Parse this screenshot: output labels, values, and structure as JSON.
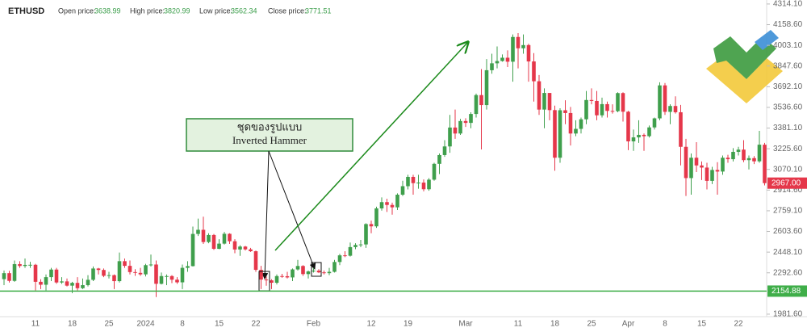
{
  "chart_data": {
    "type": "candlestick",
    "title": "ETHUSD",
    "info": [
      {
        "label": "Open price:",
        "value": "3638.99"
      },
      {
        "label": "High price:",
        "value": "3820.99"
      },
      {
        "label": "Low price:",
        "value": "3562.34"
      },
      {
        "label": "Close price:",
        "value": "3771.51"
      }
    ],
    "annotation": [
      "ชุดของรูปแบบ",
      "Inverted Hammer"
    ],
    "up_color": "#3f9f4c",
    "down_color": "#e5374a",
    "ylim": [
      1963,
      4344
    ],
    "yticks": [
      {
        "value": 4314.1,
        "label": "4314.10"
      },
      {
        "value": 4158.6,
        "label": "4158.60"
      },
      {
        "value": 4003.1,
        "label": "4003.10"
      },
      {
        "value": 3847.6,
        "label": "3847.60"
      },
      {
        "value": 3692.1,
        "label": "3692.10"
      },
      {
        "value": 3536.6,
        "label": "3536.60"
      },
      {
        "value": 3381.1,
        "label": "3381.10"
      },
      {
        "value": 3225.6,
        "label": "3225.60"
      },
      {
        "value": 3070.1,
        "label": "3070.10"
      },
      {
        "value": 2914.6,
        "label": "2914.60"
      },
      {
        "value": 2759.1,
        "label": "2759.10"
      },
      {
        "value": 2603.6,
        "label": "2603.60"
      },
      {
        "value": 2448.1,
        "label": "2448.10"
      },
      {
        "value": 2292.6,
        "label": "2292.60"
      },
      {
        "value": 1981.6,
        "label": "1981.60"
      }
    ],
    "price_line": {
      "value": 2154.88,
      "label": "2154.88",
      "color": "#3fae49"
    },
    "last_price": {
      "value": 2967,
      "label": "2967.00",
      "color": "#e5374a"
    },
    "categories": [
      null,
      null,
      null,
      null,
      null,
      null,
      "11",
      null,
      null,
      null,
      null,
      null,
      null,
      "18",
      null,
      null,
      null,
      null,
      null,
      null,
      "25",
      null,
      null,
      null,
      null,
      null,
      null,
      "2024",
      null,
      null,
      null,
      null,
      null,
      null,
      "8",
      null,
      null,
      null,
      null,
      null,
      null,
      "15",
      null,
      null,
      null,
      null,
      null,
      null,
      "22",
      null,
      null,
      null,
      null,
      null,
      null,
      null,
      null,
      null,
      null,
      "Feb",
      null,
      null,
      null,
      null,
      null,
      null,
      null,
      null,
      null,
      null,
      "12",
      null,
      null,
      null,
      null,
      null,
      null,
      "19",
      null,
      null,
      null,
      null,
      null,
      null,
      null,
      null,
      null,
      null,
      "Mar",
      null,
      null,
      null,
      null,
      null,
      null,
      null,
      null,
      null,
      "11",
      null,
      null,
      null,
      null,
      null,
      null,
      "18",
      null,
      null,
      null,
      null,
      null,
      null,
      "25",
      null,
      null,
      null,
      null,
      null,
      null,
      "Apr",
      null,
      null,
      null,
      null,
      null,
      null,
      "8",
      null,
      null,
      null,
      null,
      null,
      null,
      "15",
      null,
      null,
      null,
      null,
      null,
      null,
      "22",
      null,
      null,
      null,
      null,
      null,
      null
    ],
    "ohlc": [
      [
        2245,
        2310,
        2200,
        2290
      ],
      [
        2290,
        2308,
        2220,
        2232
      ],
      [
        2232,
        2385,
        2225,
        2358
      ],
      [
        2358,
        2380,
        2330,
        2344
      ],
      [
        2344,
        2400,
        2330,
        2352
      ],
      [
        2352,
        2375,
        2330,
        2353
      ],
      [
        2353,
        2360,
        2160,
        2225
      ],
      [
        2225,
        2245,
        2170,
        2203
      ],
      [
        2203,
        2280,
        2160,
        2260
      ],
      [
        2260,
        2330,
        2230,
        2317
      ],
      [
        2317,
        2330,
        2210,
        2220
      ],
      [
        2220,
        2260,
        2210,
        2228
      ],
      [
        2228,
        2250,
        2190,
        2196
      ],
      [
        2196,
        2225,
        2140,
        2217
      ],
      [
        2217,
        2260,
        2160,
        2177
      ],
      [
        2177,
        2250,
        2170,
        2200
      ],
      [
        2200,
        2275,
        2190,
        2240
      ],
      [
        2240,
        2340,
        2230,
        2325
      ],
      [
        2325,
        2330,
        2280,
        2314
      ],
      [
        2314,
        2325,
        2260,
        2270
      ],
      [
        2270,
        2300,
        2250,
        2275
      ],
      [
        2275,
        2280,
        2170,
        2230
      ],
      [
        2230,
        2445,
        2220,
        2380
      ],
      [
        2380,
        2400,
        2330,
        2345
      ],
      [
        2345,
        2385,
        2280,
        2298
      ],
      [
        2298,
        2320,
        2270,
        2292
      ],
      [
        2292,
        2330,
        2270,
        2281
      ],
      [
        2281,
        2360,
        2265,
        2350
      ],
      [
        2350,
        2430,
        2340,
        2355
      ],
      [
        2355,
        2385,
        2110,
        2210
      ],
      [
        2210,
        2295,
        2205,
        2268
      ],
      [
        2268,
        2280,
        2200,
        2268
      ],
      [
        2268,
        2275,
        2215,
        2241
      ],
      [
        2241,
        2260,
        2210,
        2221
      ],
      [
        2221,
        2355,
        2170,
        2330
      ],
      [
        2330,
        2380,
        2300,
        2343
      ],
      [
        2343,
        2640,
        2340,
        2585
      ],
      [
        2585,
        2700,
        2570,
        2616
      ],
      [
        2616,
        2715,
        2510,
        2524
      ],
      [
        2524,
        2590,
        2515,
        2577
      ],
      [
        2577,
        2585,
        2465,
        2473
      ],
      [
        2473,
        2545,
        2470,
        2512
      ],
      [
        2512,
        2600,
        2505,
        2586
      ],
      [
        2586,
        2590,
        2510,
        2530
      ],
      [
        2530,
        2545,
        2440,
        2468
      ],
      [
        2468,
        2500,
        2420,
        2490
      ],
      [
        2490,
        2495,
        2460,
        2469
      ],
      [
        2469,
        2480,
        2450,
        2455
      ],
      [
        2455,
        2460,
        2300,
        2315
      ],
      [
        2315,
        2345,
        2170,
        2242
      ],
      [
        2242,
        2265,
        2195,
        2236
      ],
      [
        2236,
        2245,
        2170,
        2218
      ],
      [
        2218,
        2280,
        2205,
        2268
      ],
      [
        2268,
        2285,
        2255,
        2267
      ],
      [
        2267,
        2300,
        2250,
        2258
      ],
      [
        2258,
        2325,
        2230,
        2318
      ],
      [
        2318,
        2390,
        2310,
        2344
      ],
      [
        2344,
        2350,
        2270,
        2283
      ],
      [
        2283,
        2310,
        2250,
        2303
      ],
      [
        2303,
        2330,
        2295,
        2309
      ],
      [
        2309,
        2320,
        2290,
        2296
      ],
      [
        2296,
        2310,
        2280,
        2290
      ],
      [
        2290,
        2330,
        2275,
        2300
      ],
      [
        2300,
        2390,
        2295,
        2374
      ],
      [
        2374,
        2435,
        2350,
        2424
      ],
      [
        2424,
        2455,
        2410,
        2421
      ],
      [
        2421,
        2520,
        2415,
        2486
      ],
      [
        2486,
        2515,
        2470,
        2502
      ],
      [
        2502,
        2540,
        2485,
        2506
      ],
      [
        2506,
        2665,
        2480,
        2659
      ],
      [
        2659,
        2685,
        2590,
        2642
      ],
      [
        2642,
        2790,
        2630,
        2777
      ],
      [
        2777,
        2860,
        2760,
        2824
      ],
      [
        2824,
        2850,
        2750,
        2803
      ],
      [
        2803,
        2820,
        2730,
        2785
      ],
      [
        2785,
        2890,
        2765,
        2880
      ],
      [
        2880,
        2985,
        2870,
        2944
      ],
      [
        2944,
        3030,
        2920,
        3014
      ],
      [
        3014,
        3030,
        2880,
        2967
      ],
      [
        2967,
        3030,
        2925,
        2971
      ],
      [
        2971,
        2995,
        2905,
        2921
      ],
      [
        2921,
        3005,
        2910,
        2993
      ],
      [
        2993,
        3120,
        2985,
        3112
      ],
      [
        3112,
        3190,
        3035,
        3178
      ],
      [
        3178,
        3290,
        3165,
        3243
      ],
      [
        3243,
        3480,
        3195,
        3385
      ],
      [
        3385,
        3520,
        3300,
        3340
      ],
      [
        3340,
        3450,
        3330,
        3434
      ],
      [
        3434,
        3455,
        3390,
        3420
      ],
      [
        3420,
        3500,
        3380,
        3487
      ],
      [
        3487,
        3640,
        3460,
        3629
      ],
      [
        3629,
        3825,
        3220,
        3554
      ],
      [
        3554,
        3900,
        3520,
        3816
      ],
      [
        3816,
        3940,
        3790,
        3868
      ],
      [
        3868,
        3995,
        3830,
        3885
      ],
      [
        3885,
        3935,
        3880,
        3910
      ],
      [
        3910,
        3965,
        3840,
        3880
      ],
      [
        3880,
        4085,
        3730,
        4066
      ],
      [
        4066,
        4095,
        3830,
        3981
      ],
      [
        3981,
        4085,
        3940,
        4005
      ],
      [
        4005,
        4015,
        3730,
        3882
      ],
      [
        3882,
        3945,
        3580,
        3733
      ],
      [
        3733,
        3780,
        3480,
        3520
      ],
      [
        3520,
        3680,
        3380,
        3645
      ],
      [
        3645,
        3645,
        3440,
        3516
      ],
      [
        3516,
        3550,
        3060,
        3158
      ],
      [
        3158,
        3530,
        3120,
        3515
      ],
      [
        3515,
        3590,
        3410,
        3494
      ],
      [
        3494,
        3540,
        3250,
        3340
      ],
      [
        3340,
        3440,
        3320,
        3375
      ],
      [
        3375,
        3460,
        3340,
        3447
      ],
      [
        3447,
        3660,
        3410,
        3592
      ],
      [
        3592,
        3680,
        3560,
        3585
      ],
      [
        3585,
        3660,
        3440,
        3477
      ],
      [
        3477,
        3610,
        3460,
        3561
      ],
      [
        3561,
        3580,
        3460,
        3510
      ],
      [
        3510,
        3560,
        3490,
        3508
      ],
      [
        3508,
        3650,
        3500,
        3644
      ],
      [
        3644,
        3650,
        3430,
        3504
      ],
      [
        3504,
        3510,
        3215,
        3281
      ],
      [
        3281,
        3370,
        3210,
        3311
      ],
      [
        3311,
        3440,
        3270,
        3330
      ],
      [
        3330,
        3340,
        3210,
        3320
      ],
      [
        3320,
        3400,
        3310,
        3386
      ],
      [
        3386,
        3460,
        3370,
        3454
      ],
      [
        3454,
        3725,
        3440,
        3702
      ],
      [
        3702,
        3720,
        3480,
        3503
      ],
      [
        3503,
        3560,
        3410,
        3547
      ],
      [
        3547,
        3620,
        3490,
        3500
      ],
      [
        3500,
        3555,
        3100,
        3240
      ],
      [
        3240,
        3300,
        2870,
        3005
      ],
      [
        3005,
        3190,
        2880,
        3158
      ],
      [
        3158,
        3275,
        3050,
        3100
      ],
      [
        3100,
        3130,
        2990,
        3084
      ],
      [
        3084,
        3120,
        2920,
        2984
      ],
      [
        2984,
        3090,
        2960,
        3066
      ],
      [
        3066,
        3125,
        2880,
        3054
      ],
      [
        3054,
        3175,
        3030,
        3158
      ],
      [
        3158,
        3180,
        3120,
        3147
      ],
      [
        3147,
        3230,
        3130,
        3202
      ],
      [
        3202,
        3240,
        3175,
        3219
      ],
      [
        3219,
        3290,
        3125,
        3140
      ],
      [
        3140,
        3175,
        3070,
        3155
      ],
      [
        3155,
        3170,
        3110,
        3131
      ],
      [
        3131,
        3360,
        3120,
        3256
      ],
      [
        3256,
        3270,
        2950,
        2967
      ]
    ]
  }
}
